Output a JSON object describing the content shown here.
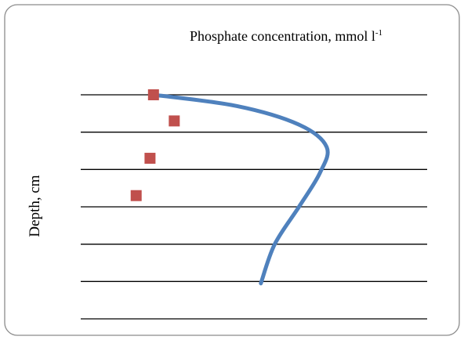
{
  "chart_data": {
    "type": "line",
    "title": "Phosphate concentration, mmol l",
    "title_superscript": "-1",
    "y_label": "Depth, cm",
    "xlim": [
      0,
      10
    ],
    "ylim": [
      6,
      0
    ],
    "yticks": [
      0,
      1,
      2,
      3,
      4,
      5,
      6
    ],
    "grid": true,
    "series": [
      {
        "style": "markers",
        "color": "#c0504d",
        "x": [
          2.1,
          2.7,
          2.0,
          1.6
        ],
        "values": [
          0,
          0.7,
          1.7,
          2.7
        ]
      },
      {
        "style": "line",
        "color": "#4f81bd",
        "x": [
          2.1,
          4.5,
          6.3,
          7.1,
          6.9,
          6.3,
          5.6,
          5.2
        ],
        "values": [
          0,
          0.3,
          0.8,
          1.4,
          2.1,
          3.0,
          4.0,
          5.05
        ]
      }
    ]
  }
}
